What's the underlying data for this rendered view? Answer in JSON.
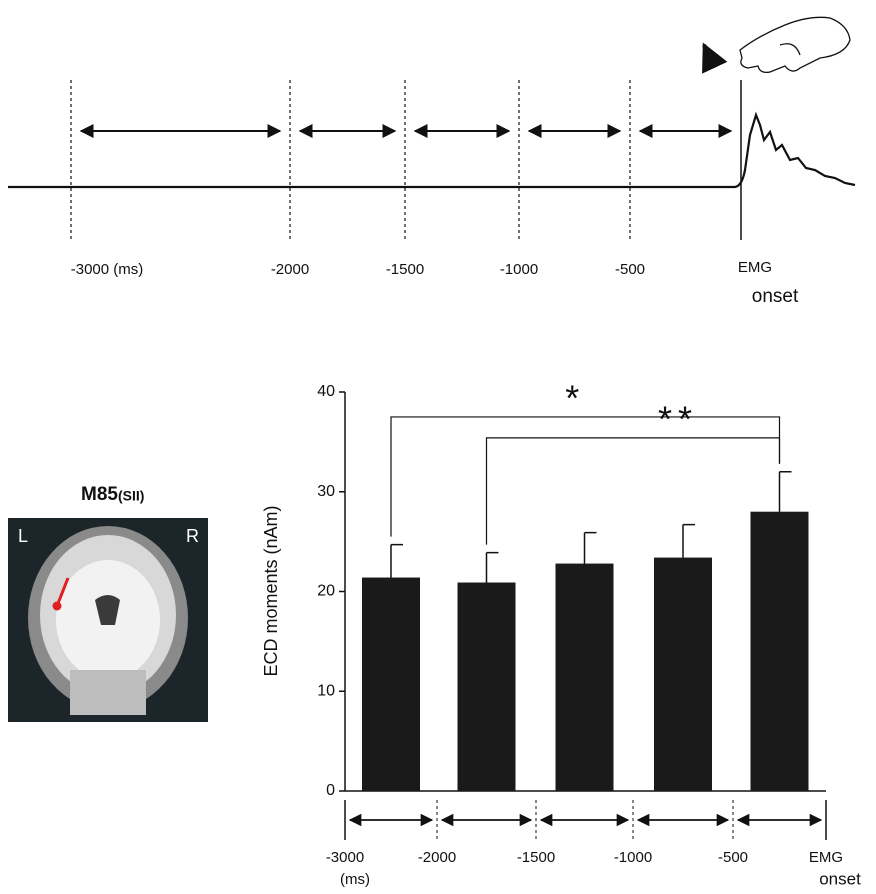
{
  "timeline": {
    "labels": [
      "-3000 (ms)",
      "-2000",
      "-1500",
      "-1000",
      "-500"
    ],
    "emg_label": "EMG",
    "onset_label": "onset"
  },
  "brain": {
    "title": "M85",
    "region": "(SII)",
    "left": "L",
    "right": "R"
  },
  "chart_data": {
    "type": "bar",
    "y_label": "ECD moments (nAm)",
    "categories": [
      null,
      null,
      null,
      null,
      null
    ],
    "values": [
      21.4,
      20.9,
      22.8,
      23.4,
      28.0
    ],
    "errors": [
      3.3,
      3.0,
      3.1,
      3.3,
      4.0
    ],
    "color": "#1a1a1a",
    "ylim": [
      0,
      40
    ],
    "yticks": [
      0,
      10,
      20,
      30,
      40
    ],
    "boundary_labels": [
      {
        "text": "-3000",
        "sub": "(ms)"
      },
      {
        "text": "-2000"
      },
      {
        "text": "-1500"
      },
      {
        "text": "-1000"
      },
      {
        "text": "-500"
      },
      {
        "text": "EMG",
        "sub": "onset"
      }
    ],
    "significance": [
      {
        "label": "*",
        "from": 0,
        "to": 4,
        "y": 37.5
      },
      {
        "label": "**",
        "from": 1,
        "to": 4,
        "y": 35.4
      }
    ]
  }
}
